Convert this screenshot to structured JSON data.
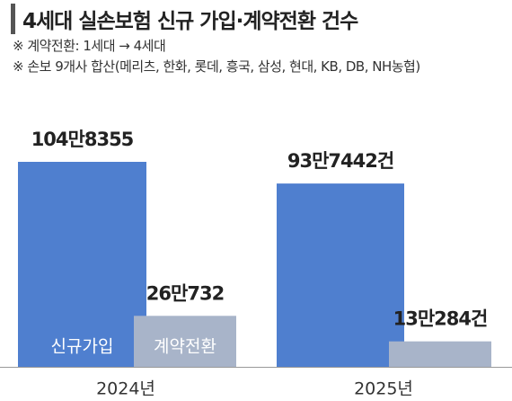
{
  "title": "4세대 실손보험 신규 가입·계약전환 건수",
  "notes": [
    "※ 계약전환: 1세대 → 4세대",
    "※ 손보 9개사 합산(메리츠, 한화, 롯데, 흥국, 삼성, 현대, KB, DB, NH농협)"
  ],
  "chart_data": {
    "type": "bar",
    "categories": [
      "2024년",
      "2025년"
    ],
    "series": [
      {
        "name": "신규가입",
        "color": "#4f7fcf",
        "values": [
          1048355,
          937442
        ],
        "value_labels": [
          "104만8355",
          "93만7442건"
        ]
      },
      {
        "name": "계약전환",
        "color": "#a8b4c9",
        "values": [
          260732,
          130284
        ],
        "value_labels": [
          "26만732",
          "13만284건"
        ]
      }
    ]
  }
}
